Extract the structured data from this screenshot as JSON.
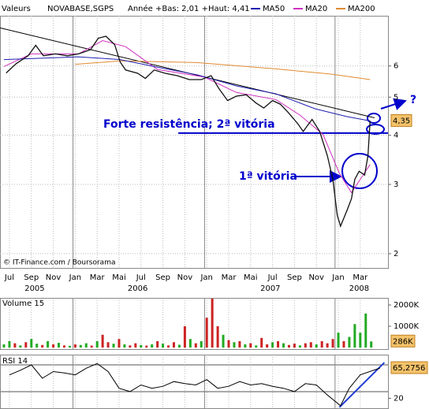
{
  "chart_data": [
    {
      "type": "line",
      "label": "Valeurs",
      "range_text": "Année +Bas: 2,01 +Haut: 4,41",
      "xlim": [
        -0.86,
        34.53
      ],
      "xticks": [
        {
          "value": 0,
          "label": "Jul"
        },
        {
          "value": 2,
          "label": "Sep"
        },
        {
          "value": 4,
          "label": "Nov"
        },
        {
          "value": 6,
          "label": "Jan"
        },
        {
          "value": 8,
          "label": "Mar"
        },
        {
          "value": 10,
          "label": "Mai"
        },
        {
          "value": 12,
          "label": "Jul"
        },
        {
          "value": 14,
          "label": "Sep"
        },
        {
          "value": 16,
          "label": "Nov"
        },
        {
          "value": 18,
          "label": "Jan"
        },
        {
          "value": 20,
          "label": "Mar"
        },
        {
          "value": 22,
          "label": "Mai"
        },
        {
          "value": 24,
          "label": "Jul"
        },
        {
          "value": 26,
          "label": "Sep"
        },
        {
          "value": 28,
          "label": "Nov"
        },
        {
          "value": 30,
          "label": "Jan"
        },
        {
          "value": 32,
          "label": "Mar"
        }
      ],
      "years": [
        {
          "value": 2.3,
          "label": "2005"
        },
        {
          "value": 11.7,
          "label": "2006"
        },
        {
          "value": 23.8,
          "label": "2007"
        },
        {
          "value": 31.9,
          "label": "2008"
        }
      ],
      "year_starts": [
        5.8,
        17.8,
        29.7
      ],
      "ylim": [
        1.84,
        8.05
      ],
      "log_scale": true,
      "yticks": [
        2,
        3,
        4,
        5,
        6
      ],
      "grid": true,
      "series": [
        {
          "name": "NOVABASE,SGPS",
          "color": "#111111",
          "x": [
            -0.3,
            0.6,
            1.7,
            2.4,
            3.1,
            4.2,
            5.3,
            6.3,
            7.4,
            8.1,
            8.8,
            9.6,
            10.1,
            10.6,
            11.7,
            12.4,
            13.2,
            14.2,
            15.3,
            16.4,
            17.5,
            18.4,
            19.1,
            19.9,
            20.7,
            21.6,
            22.5,
            23.2,
            24.0,
            24.7,
            25.4,
            26.3,
            26.8,
            27.6,
            28.3,
            29.0,
            29.5,
            29.9,
            30.2,
            30.8,
            31.2,
            31.5,
            31.9,
            32.4,
            32.7,
            32.9
          ],
          "values": [
            5.76,
            6.08,
            6.37,
            6.77,
            6.37,
            6.44,
            6.37,
            6.44,
            6.6,
            7.06,
            7.14,
            6.8,
            6.14,
            5.86,
            5.75,
            5.58,
            5.86,
            5.75,
            5.67,
            5.54,
            5.54,
            5.67,
            5.26,
            4.9,
            5.03,
            5.07,
            4.83,
            4.69,
            4.9,
            4.8,
            4.58,
            4.28,
            4.09,
            4.39,
            4.09,
            3.55,
            3.09,
            2.51,
            2.35,
            2.58,
            2.76,
            3.09,
            3.24,
            3.17,
            3.55,
            4.35
          ]
        },
        {
          "name": "MA50",
          "color": "#1f1fb0",
          "x": [
            -0.5,
            6.3,
            10.1,
            13.5,
            17.1,
            20.7,
            24.3,
            27.9,
            30.8,
            32.9
          ],
          "values": [
            6.23,
            6.33,
            6.23,
            5.96,
            5.7,
            5.34,
            5.1,
            4.67,
            4.46,
            4.35
          ]
        },
        {
          "name": "MA20",
          "color": "#d030c0",
          "x": [
            -0.5,
            2.0,
            6.3,
            8.5,
            10.6,
            13.5,
            17.8,
            20.7,
            24.3,
            26.5,
            28.6,
            30.1,
            31.2,
            32.2,
            32.9
          ],
          "values": [
            5.98,
            6.44,
            6.44,
            6.96,
            6.72,
            5.88,
            5.62,
            5.14,
            4.93,
            4.5,
            4.02,
            3.2,
            2.86,
            3.15,
            3.37
          ]
        },
        {
          "name": "MA200",
          "color": "#e08a30",
          "x": [
            6.0,
            10.1,
            17.1,
            24.3,
            29.4,
            32.9
          ],
          "values": [
            6.06,
            6.18,
            6.12,
            5.9,
            5.72,
            5.54
          ]
        }
      ],
      "lines": [
        {
          "color": "#000000",
          "x": [
            -0.86,
            33.3
          ],
          "values": [
            7.5,
            4.43
          ]
        },
        {
          "color": "#0000cc",
          "x": [
            15.4,
            34.53
          ],
          "values": [
            4.05,
            4.05
          ]
        }
      ],
      "last": {
        "value": 4.35,
        "label": "4,35"
      },
      "annotations": [
        "Forte resistência; 2ª vitória",
        "1ª vitória",
        "?"
      ],
      "source": "© IT-Finance.com / Boursorama"
    },
    {
      "type": "bar",
      "title": "Volume 15",
      "xlim": [
        -0.86,
        34.53
      ],
      "ylim": [
        0,
        2333
      ],
      "yticks": [
        {
          "value": 1000,
          "label": "1000K"
        },
        {
          "value": 2000,
          "label": "2000K"
        }
      ],
      "x": [
        -0.5,
        0,
        0.5,
        1,
        1.5,
        2,
        2.5,
        3,
        3.5,
        4,
        4.5,
        5,
        5.5,
        6,
        6.5,
        7,
        7.5,
        8,
        8.5,
        9,
        9.5,
        10,
        10.5,
        11,
        11.5,
        12,
        12.5,
        13,
        13.5,
        14,
        14.5,
        15,
        15.5,
        16,
        16.5,
        17,
        17.5,
        18,
        18.5,
        19,
        19.5,
        20,
        20.5,
        21,
        21.5,
        22,
        22.5,
        23,
        23.5,
        24,
        24.5,
        25,
        25.5,
        26,
        26.5,
        27,
        27.5,
        28,
        28.5,
        29,
        29.5,
        30,
        30.5,
        31,
        31.5,
        32,
        32.5,
        33
      ],
      "values": [
        150,
        300,
        200,
        100,
        250,
        400,
        180,
        120,
        300,
        150,
        220,
        100,
        80,
        150,
        120,
        200,
        90,
        300,
        600,
        250,
        180,
        400,
        150,
        100,
        200,
        120,
        90,
        150,
        300,
        180,
        100,
        250,
        130,
        1000,
        400,
        200,
        300,
        1400,
        2300,
        1000,
        600,
        350,
        250,
        300,
        150,
        200,
        100,
        450,
        150,
        250,
        300,
        200,
        120,
        180,
        100,
        200,
        250,
        150,
        300,
        200,
        400,
        700,
        300,
        500,
        1100,
        700,
        1600,
        286
      ],
      "colors": [
        "#22aa22",
        "#22aa22",
        "#cc2222",
        "#22aa22",
        "#cc2222",
        "#22aa22",
        "#22aa22",
        "#cc2222",
        "#22aa22",
        "#cc2222",
        "#22aa22",
        "#cc2222",
        "#22aa22",
        "#cc2222",
        "#22aa22",
        "#22aa22",
        "#cc2222",
        "#22aa22",
        "#cc2222",
        "#cc2222",
        "#22aa22",
        "#cc2222",
        "#22aa22",
        "#cc2222",
        "#cc2222",
        "#22aa22",
        "#cc2222",
        "#22aa22",
        "#cc2222",
        "#22aa22",
        "#cc2222",
        "#cc2222",
        "#22aa22",
        "#cc2222",
        "#22aa22",
        "#cc2222",
        "#22aa22",
        "#cc2222",
        "#cc2222",
        "#cc2222",
        "#22aa22",
        "#cc2222",
        "#22aa22",
        "#cc2222",
        "#22aa22",
        "#cc2222",
        "#22aa22",
        "#cc2222",
        "#cc2222",
        "#22aa22",
        "#cc2222",
        "#22aa22",
        "#cc2222",
        "#cc2222",
        "#22aa22",
        "#cc2222",
        "#cc2222",
        "#22aa22",
        "#cc2222",
        "#cc2222",
        "#cc2222",
        "#22aa22",
        "#cc2222",
        "#22aa22",
        "#22aa22",
        "#22aa22",
        "#22aa22",
        "#22aa22"
      ],
      "last": {
        "value": 286,
        "label": "286K"
      }
    },
    {
      "type": "line",
      "title": "RSI 14",
      "xlim": [
        -0.86,
        34.53
      ],
      "ylim": [
        4,
        83
      ],
      "yticks": [
        20
      ],
      "levels": [
        30,
        70
      ],
      "series": [
        {
          "color": "#000000",
          "x": [
            0,
            1,
            2,
            3,
            4,
            5,
            6,
            7,
            8,
            9,
            10,
            11,
            12,
            13,
            14,
            15,
            16,
            17,
            18,
            19,
            20,
            21,
            22,
            23,
            24,
            25,
            26,
            27,
            28,
            29,
            30.2,
            31,
            32,
            33.8
          ],
          "values": [
            55,
            62,
            70,
            50,
            60,
            58,
            55,
            65,
            72,
            60,
            35,
            30,
            40,
            35,
            38,
            45,
            42,
            40,
            48,
            35,
            38,
            45,
            40,
            42,
            38,
            35,
            30,
            42,
            40,
            25,
            9,
            35,
            55,
            65.2756
          ]
        }
      ],
      "lines": [
        {
          "color": "#1f3fcf",
          "x": [
            30.1,
            34.2
          ],
          "values": [
            6.6,
            73.5
          ]
        }
      ],
      "last": {
        "value": 65.2756,
        "label": "65,2756"
      }
    }
  ]
}
